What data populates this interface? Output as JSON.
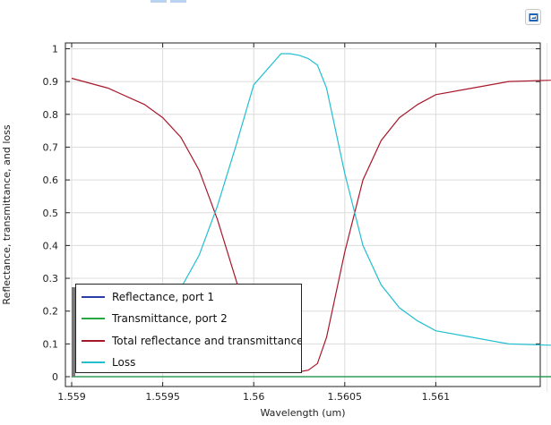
{
  "window": {
    "toolbar_icon": "rendered-image-icon",
    "colors": {
      "tab_accent": "#b9d3f0",
      "toolbar_icon_blue": "#1f63b8"
    }
  },
  "chart_data": {
    "type": "line",
    "title": "",
    "xlabel": "Wavelength (um)",
    "ylabel": "Reflectance, transmittance, and loss",
    "xlim": [
      1.559,
      1.562
    ],
    "ylim": [
      0,
      1
    ],
    "x_ticks": [
      "1.559",
      "1.5595",
      "1.56",
      "1.5605",
      "1.561"
    ],
    "y_ticks": [
      "0",
      "0.1",
      "0.2",
      "0.3",
      "0.4",
      "0.5",
      "0.6",
      "0.7",
      "0.8",
      "0.9",
      "1"
    ],
    "grid": true,
    "legend_position": "bottom-left",
    "series": [
      {
        "name": "Reflectance, port 1",
        "color": "#2b3ca6",
        "x": [
          1.559,
          1.5599,
          1.56,
          1.5601,
          1.5602,
          1.5603,
          1.5604,
          1.5605,
          1.5606,
          1.562
        ],
        "y": [
          0,
          0,
          0,
          0,
          0,
          0,
          0,
          0,
          0,
          0
        ]
      },
      {
        "name": "Transmittance, port 2",
        "color": "#27a844",
        "x": [
          1.559,
          1.5599,
          1.56,
          1.5601,
          1.5602,
          1.5603,
          1.5604,
          1.5605,
          1.5606,
          1.562
        ],
        "y": [
          0,
          0,
          0,
          0,
          0,
          0,
          0,
          0,
          0,
          0
        ]
      },
      {
        "name": "Total reflectance and transmittance",
        "color": "#a8182b",
        "x": [
          1.559,
          1.5592,
          1.5594,
          1.5595,
          1.5596,
          1.5597,
          1.5598,
          1.5599,
          1.56,
          1.56015,
          1.5602,
          1.56025,
          1.5603,
          1.56035,
          1.5604,
          1.5605,
          1.5606,
          1.5607,
          1.5608,
          1.5609,
          1.561,
          1.5612,
          1.5614,
          1.562
        ],
        "y": [
          0.91,
          0.88,
          0.83,
          0.79,
          0.73,
          0.63,
          0.48,
          0.3,
          0.11,
          0.02,
          0.015,
          0.015,
          0.02,
          0.04,
          0.12,
          0.38,
          0.6,
          0.72,
          0.79,
          0.83,
          0.86,
          0.88,
          0.9,
          0.91
        ]
      },
      {
        "name": "Loss",
        "color": "#22bfd0",
        "x": [
          1.559,
          1.5592,
          1.5594,
          1.5595,
          1.5596,
          1.5597,
          1.5598,
          1.5599,
          1.56,
          1.56015,
          1.5602,
          1.56025,
          1.5603,
          1.56035,
          1.5604,
          1.5605,
          1.5606,
          1.5607,
          1.5608,
          1.5609,
          1.561,
          1.5612,
          1.5614,
          1.562
        ],
        "y": [
          0.09,
          0.12,
          0.17,
          0.21,
          0.27,
          0.37,
          0.52,
          0.7,
          0.89,
          0.985,
          0.985,
          0.98,
          0.97,
          0.95,
          0.88,
          0.62,
          0.4,
          0.28,
          0.21,
          0.17,
          0.14,
          0.12,
          0.1,
          0.09
        ]
      }
    ],
    "legend_text": [
      "Reflectance, port 1",
      "Transmittance, port 2",
      "Total reflectance and transmittance",
      "Loss"
    ]
  }
}
